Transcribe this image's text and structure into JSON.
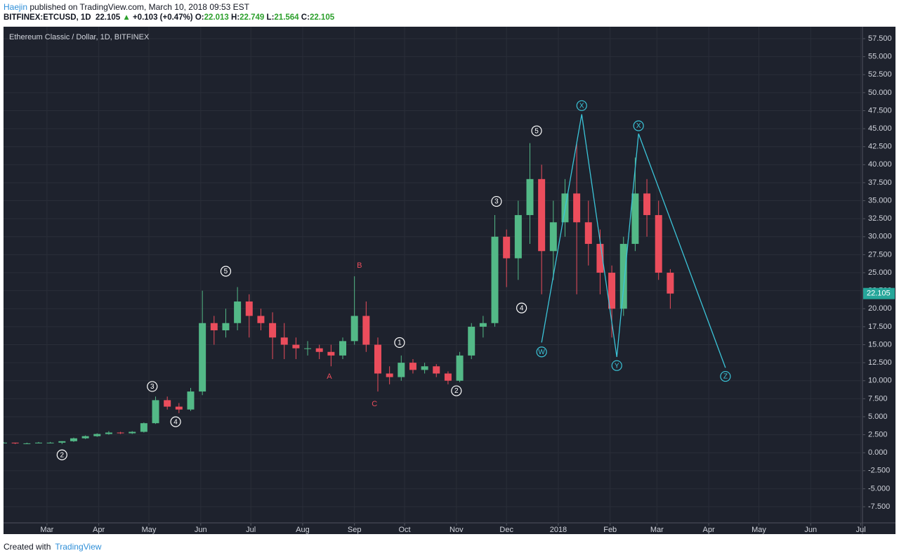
{
  "header": {
    "author": "Haejin",
    "published": "published on TradingView.com, March 10, 2018 09:53 EST",
    "symbol": "BITFINEX:ETCUSD, 1D",
    "last": "22.105",
    "arrow": "▲",
    "change": "+0.103 (+0.47%)",
    "quote": [
      {
        "label": "O:",
        "value": "22.013"
      },
      {
        "label": "H:",
        "value": "22.749"
      },
      {
        "label": "L:",
        "value": "21.564"
      },
      {
        "label": "C:",
        "value": "22.105"
      }
    ]
  },
  "footer": {
    "created": "Created with",
    "brand": "TradingView"
  },
  "chart_data": {
    "type": "candlestick",
    "title": "Ethereum Classic / Dollar, 1D, BITFINEX",
    "x": [
      -26,
      -19,
      -12,
      -5,
      2,
      9,
      16,
      23,
      30,
      37,
      44,
      51,
      58,
      65,
      72,
      79,
      86,
      93,
      100,
      107,
      114,
      121,
      128,
      135,
      142,
      149,
      156,
      163,
      170,
      177,
      184,
      191,
      198,
      205,
      212,
      219,
      226,
      233,
      240,
      247,
      254,
      261,
      268,
      275,
      282,
      289,
      296,
      303,
      310,
      317,
      324,
      331,
      338,
      345,
      352,
      359,
      366,
      373
    ],
    "open": [
      1.4,
      1.4,
      1.3,
      1.3,
      1.4,
      1.4,
      1.6,
      2.0,
      2.3,
      2.6,
      2.8,
      2.7,
      2.9,
      4.1,
      7.3,
      6.4,
      6.0,
      8.5,
      18,
      17,
      18,
      21,
      19,
      18,
      16,
      15,
      14.5,
      14.5,
      14,
      13.5,
      15.5,
      19,
      15,
      11,
      10.5,
      12.5,
      11.5,
      12,
      11,
      10,
      13.5,
      17.5,
      18,
      30,
      27,
      33,
      38,
      28,
      32,
      36,
      32,
      29,
      25,
      20,
      29,
      36,
      33,
      25
    ],
    "high": [
      1.5,
      1.4,
      1.4,
      1.5,
      1.5,
      1.6,
      2.1,
      2.4,
      2.7,
      3.0,
      2.9,
      3.0,
      4.2,
      7.8,
      7.8,
      6.9,
      9.0,
      22.5,
      19,
      20,
      23,
      22,
      20,
      19.5,
      18,
      16,
      15.5,
      15,
      15,
      16,
      24.5,
      21,
      16,
      12,
      13.5,
      13,
      12.5,
      12.3,
      11.3,
      14,
      18,
      19,
      33,
      31,
      35,
      43,
      40,
      35,
      38,
      43,
      35,
      31,
      26,
      30,
      41,
      38,
      35,
      25.5
    ],
    "low": [
      1.3,
      1.2,
      1.2,
      1.3,
      1.3,
      1.2,
      1.5,
      1.9,
      2.2,
      2.5,
      2.6,
      2.6,
      2.8,
      4.0,
      6.0,
      5.5,
      5.8,
      8.0,
      15,
      16,
      17,
      16,
      17,
      13,
      13,
      13,
      13.5,
      13,
      12,
      13,
      15,
      14,
      8.5,
      9.5,
      10,
      11,
      11,
      10.5,
      9.5,
      9.8,
      13,
      16,
      17.5,
      23,
      24,
      29,
      22,
      24,
      30,
      22,
      26,
      22,
      16,
      19,
      28,
      30,
      24,
      20
    ],
    "close": [
      1.4,
      1.3,
      1.3,
      1.4,
      1.4,
      1.6,
      2.0,
      2.3,
      2.6,
      2.8,
      2.7,
      2.9,
      4.1,
      7.3,
      6.4,
      6.0,
      8.5,
      18,
      17,
      18,
      21,
      19,
      18,
      16,
      15,
      14.5,
      14.5,
      14,
      13.5,
      15.5,
      19,
      15,
      11,
      10.5,
      12.5,
      11.5,
      12,
      11,
      10,
      13.5,
      17.5,
      18,
      30,
      27,
      33,
      38,
      28,
      32,
      36,
      32,
      29,
      25,
      20,
      29,
      36,
      33,
      25,
      22.105
    ],
    "up_color": "#53b987",
    "down_color": "#eb4d5c",
    "grid": true,
    "xlim": [
      -26,
      488
    ],
    "ylim": [
      -9.74,
      59.16
    ],
    "xticks": [
      {
        "value": 0,
        "label": "Mar"
      },
      {
        "value": 31,
        "label": "Apr"
      },
      {
        "value": 61,
        "label": "May"
      },
      {
        "value": 92,
        "label": "Jun"
      },
      {
        "value": 122,
        "label": "Jul"
      },
      {
        "value": 153,
        "label": "Aug"
      },
      {
        "value": 184,
        "label": "Sep"
      },
      {
        "value": 214,
        "label": "Oct"
      },
      {
        "value": 245,
        "label": "Nov"
      },
      {
        "value": 275,
        "label": "Dec"
      },
      {
        "value": 306,
        "label": "2018"
      },
      {
        "value": 337,
        "label": "Feb"
      },
      {
        "value": 365,
        "label": "Mar"
      },
      {
        "value": 396,
        "label": "Apr"
      },
      {
        "value": 426,
        "label": "May"
      },
      {
        "value": 457,
        "label": "Jun"
      },
      {
        "value": 487,
        "label": "Jul"
      }
    ],
    "yticks": [
      {
        "value": -7.5,
        "label": "-7.500"
      },
      {
        "value": -5,
        "label": "-5.000"
      },
      {
        "value": -2.5,
        "label": "-2.500"
      },
      {
        "value": 0,
        "label": "0.000"
      },
      {
        "value": 2.5,
        "label": "2.500"
      },
      {
        "value": 5,
        "label": "5.000"
      },
      {
        "value": 7.5,
        "label": "7.500"
      },
      {
        "value": 10,
        "label": "10.000"
      },
      {
        "value": 12.5,
        "label": "12.500"
      },
      {
        "value": 15,
        "label": "15.000"
      },
      {
        "value": 17.5,
        "label": "17.500"
      },
      {
        "value": 20,
        "label": "20.000"
      },
      {
        "value": 22.5,
        "label": "22.500"
      },
      {
        "value": 25,
        "label": "25.000"
      },
      {
        "value": 27.5,
        "label": "27.500"
      },
      {
        "value": 30,
        "label": "30.000"
      },
      {
        "value": 32.5,
        "label": "32.500"
      },
      {
        "value": 35,
        "label": "35.000"
      },
      {
        "value": 37.5,
        "label": "37.500"
      },
      {
        "value": 40,
        "label": "40.000"
      },
      {
        "value": 42.5,
        "label": "42.500"
      },
      {
        "value": 45,
        "label": "45.000"
      },
      {
        "value": 47.5,
        "label": "47.500"
      },
      {
        "value": 50,
        "label": "50.000"
      },
      {
        "value": 52.5,
        "label": "52.500"
      },
      {
        "value": 55,
        "label": "55.000"
      },
      {
        "value": 57.5,
        "label": "57.500"
      }
    ],
    "last_price": 22.105,
    "last_price_color": "#26a69a",
    "annotations": [
      {
        "text": "2",
        "x": 9,
        "y": -0.3,
        "color": "#ffffff",
        "circled": true
      },
      {
        "text": "3",
        "x": 63,
        "y": 9.2,
        "color": "#ffffff",
        "circled": true
      },
      {
        "text": "4",
        "x": 77,
        "y": 4.3,
        "color": "#ffffff",
        "circled": true
      },
      {
        "text": "5",
        "x": 107,
        "y": 25.2,
        "color": "#ffffff",
        "circled": true
      },
      {
        "text": "A",
        "x": 169,
        "y": 10.6,
        "color": "#eb4d5c",
        "circled": false
      },
      {
        "text": "B",
        "x": 187,
        "y": 26,
        "color": "#eb4d5c",
        "circled": false
      },
      {
        "text": "C",
        "x": 196,
        "y": 6.8,
        "color": "#eb4d5c",
        "circled": false
      },
      {
        "text": "1",
        "x": 211,
        "y": 15.3,
        "color": "#ffffff",
        "circled": true
      },
      {
        "text": "2",
        "x": 245,
        "y": 8.6,
        "color": "#ffffff",
        "circled": true
      },
      {
        "text": "3",
        "x": 269,
        "y": 34.9,
        "color": "#ffffff",
        "circled": true
      },
      {
        "text": "4",
        "x": 284,
        "y": 20.1,
        "color": "#ffffff",
        "circled": true
      },
      {
        "text": "5",
        "x": 293,
        "y": 44.7,
        "color": "#ffffff",
        "circled": true
      },
      {
        "text": "W",
        "x": 296,
        "y": 14.0,
        "color": "#3bc4d8",
        "circled": true
      },
      {
        "text": "X",
        "x": 320,
        "y": 48.2,
        "color": "#3bc4d8",
        "circled": true
      },
      {
        "text": "Y",
        "x": 341,
        "y": 12.1,
        "color": "#3bc4d8",
        "circled": true
      },
      {
        "text": "X",
        "x": 354,
        "y": 45.4,
        "color": "#3bc4d8",
        "circled": true
      },
      {
        "text": "Z",
        "x": 406,
        "y": 10.6,
        "color": "#3bc4d8",
        "circled": true
      }
    ],
    "wave_line": {
      "color": "#3bc4d8",
      "x": [
        296,
        320,
        341,
        354,
        406
      ],
      "y": [
        15.3,
        47.0,
        13.3,
        44.3,
        11.8
      ]
    }
  }
}
